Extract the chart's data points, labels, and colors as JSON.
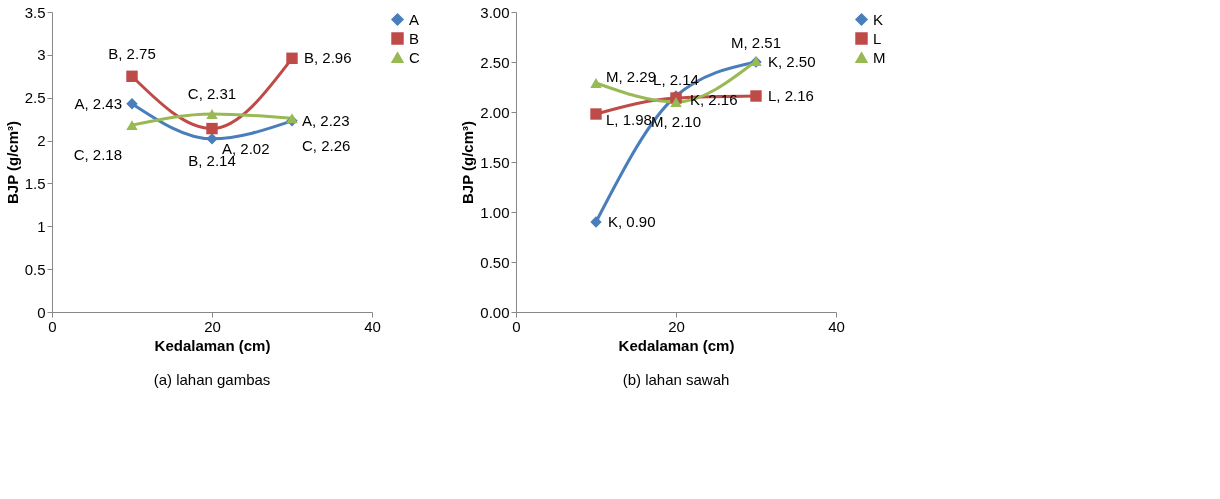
{
  "chart_data": [
    {
      "type": "line",
      "xlabel": "Kedalaman (cm)",
      "ylabel": "BJP (g/cm³)",
      "x": [
        10,
        20,
        30
      ],
      "xlim": [
        0,
        40
      ],
      "xticks": [
        0,
        20,
        40
      ],
      "ylim": [
        0,
        3.5
      ],
      "yticks": [
        0,
        0.5,
        1,
        1.5,
        2,
        2.5,
        3,
        3.5
      ],
      "grid": false,
      "legend": "right",
      "line_style": "solid",
      "annotations": [
        "(a) lahan gambas"
      ],
      "series": [
        {
          "name": "A",
          "color": "#4a7ebb",
          "marker": "diamond",
          "values": [
            2.43,
            2.02,
            2.23
          ],
          "value_labels": [
            "A, 2.43",
            "A, 2.02",
            "A, 2.23"
          ]
        },
        {
          "name": "B",
          "color": "#be4b48",
          "marker": "square",
          "values": [
            2.75,
            2.14,
            2.96
          ],
          "value_labels": [
            "B, 2.75",
            "B, 2.14",
            "B, 2.96"
          ]
        },
        {
          "name": "C",
          "color": "#98b954",
          "marker": "triangle",
          "values": [
            2.18,
            2.31,
            2.26
          ],
          "value_labels": [
            "C, 2.18",
            "C, 2.31",
            "C, 2.26"
          ]
        }
      ]
    },
    {
      "type": "line",
      "xlabel": "Kedalaman (cm)",
      "ylabel": "BJP (g/cm³)",
      "x": [
        10,
        20,
        30
      ],
      "xlim": [
        0,
        40
      ],
      "xticks": [
        0,
        20,
        40
      ],
      "ylim": [
        0,
        3
      ],
      "yticks": [
        {
          "value": 0,
          "label": "0.00"
        },
        {
          "value": 0.5,
          "label": "0.50"
        },
        {
          "value": 1,
          "label": "1.00"
        },
        {
          "value": 1.5,
          "label": "1.50"
        },
        {
          "value": 2,
          "label": "2.00"
        },
        {
          "value": 2.5,
          "label": "2.50"
        },
        {
          "value": 3,
          "label": "3.00"
        }
      ],
      "grid": false,
      "legend": "right",
      "line_style": "solid",
      "annotations": [
        "(b) lahan sawah"
      ],
      "series": [
        {
          "name": "K",
          "color": "#4a7ebb",
          "marker": "diamond",
          "values": [
            0.9,
            2.16,
            2.5
          ],
          "value_labels": [
            "K, 0.90",
            "K, 2.16",
            "K, 2.50"
          ]
        },
        {
          "name": "L",
          "color": "#be4b48",
          "marker": "square",
          "values": [
            1.98,
            2.14,
            2.16
          ],
          "value_labels": [
            "L, 1.98",
            "L, 2.14",
            "L, 2.16"
          ]
        },
        {
          "name": "M",
          "color": "#98b954",
          "marker": "triangle",
          "values": [
            2.29,
            2.1,
            2.51
          ],
          "value_labels": [
            "M, 2.29",
            "M, 2.10",
            "M, 2.51"
          ]
        }
      ]
    }
  ]
}
